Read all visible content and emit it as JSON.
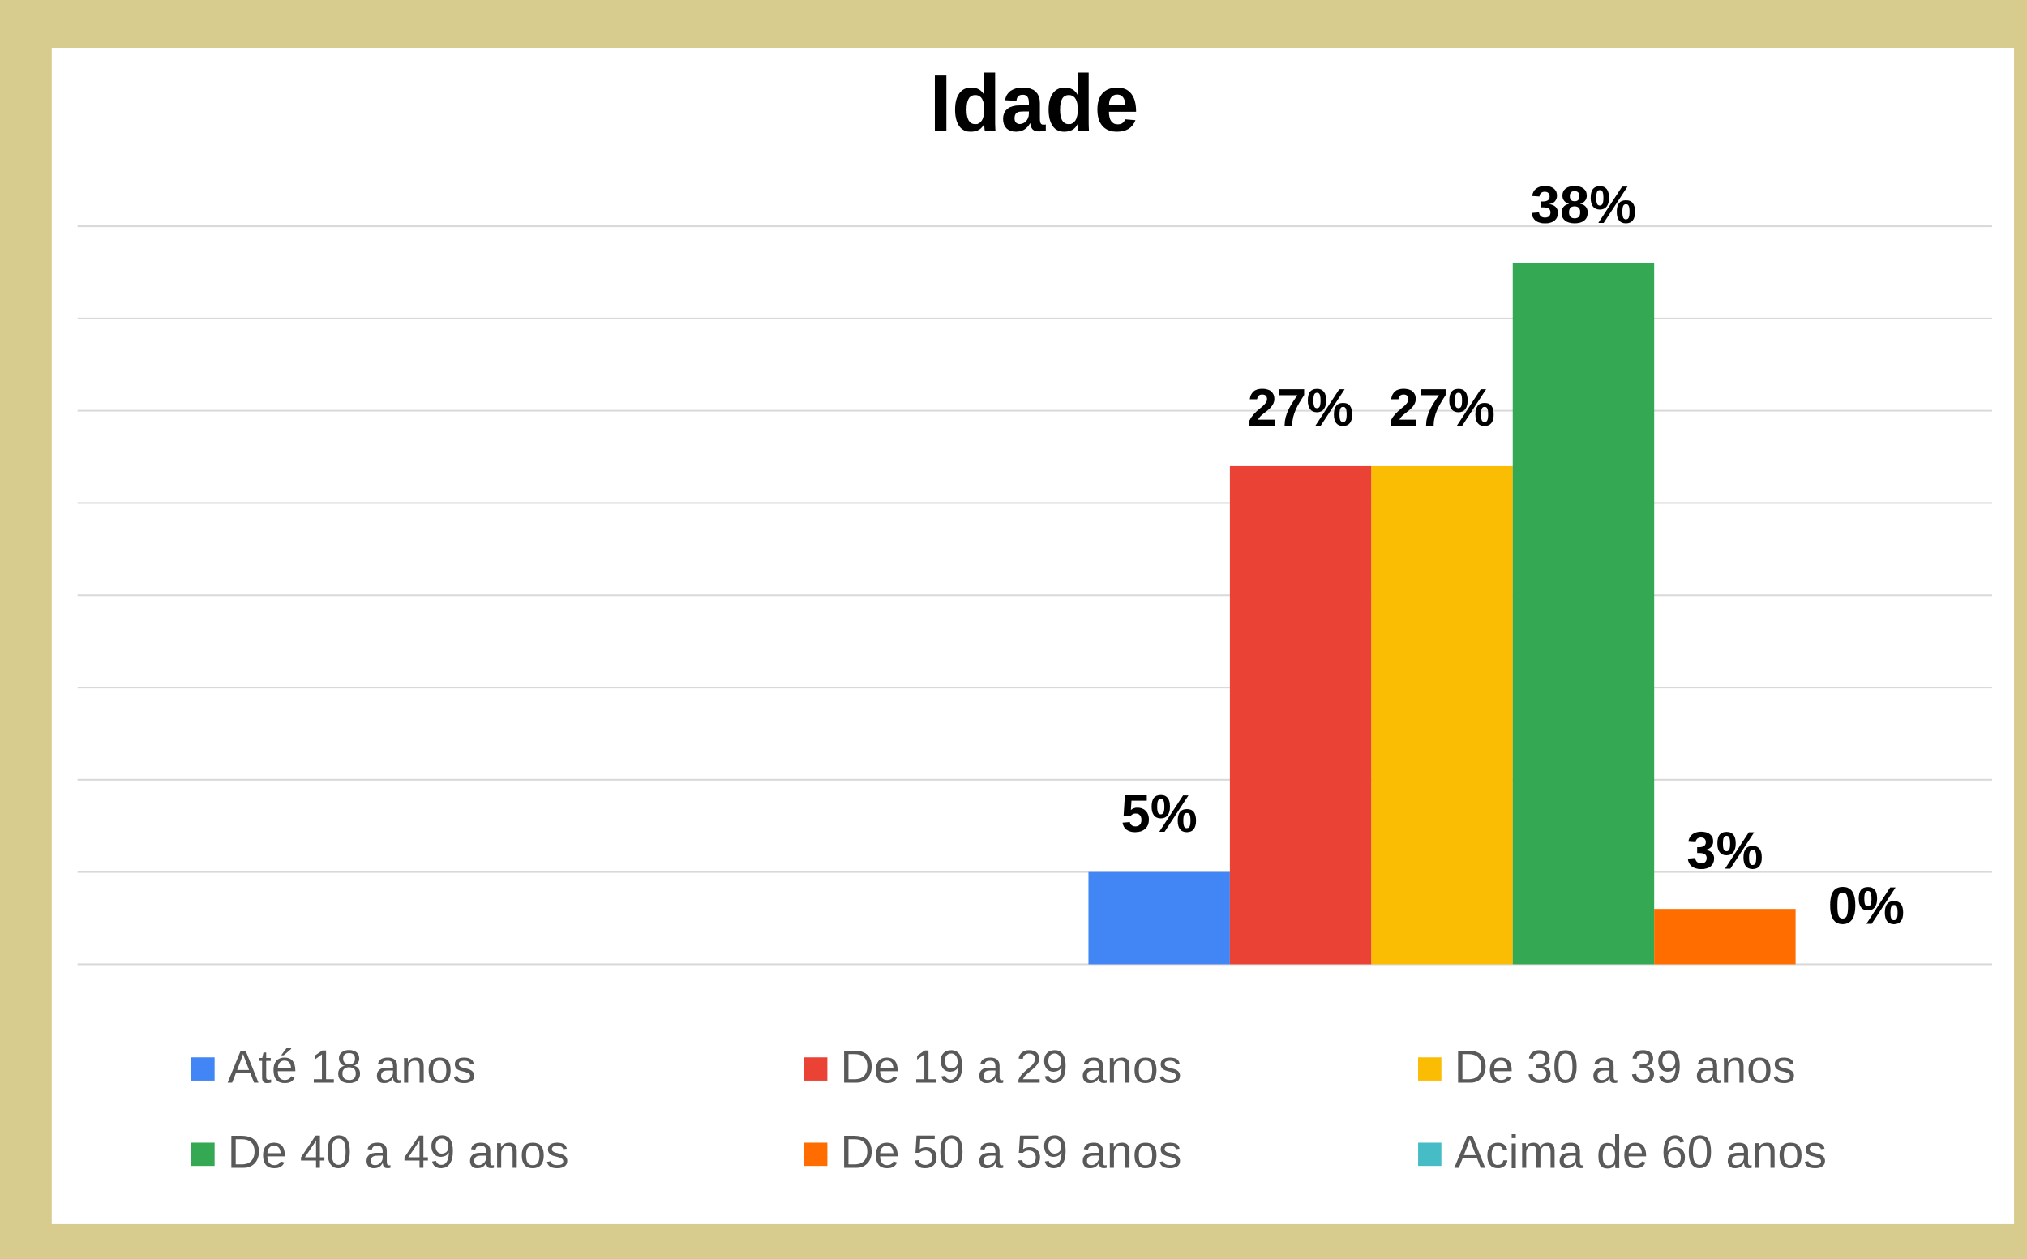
{
  "chart_data": {
    "type": "bar",
    "title": "Idade",
    "series": [
      {
        "name": "Até 18 anos",
        "color": "#4285f4",
        "values": [
          5
        ],
        "value_labels": [
          "5%"
        ]
      },
      {
        "name": "De 19 a 29 anos",
        "color": "#ea4335",
        "values": [
          27
        ],
        "value_labels": [
          "27%"
        ]
      },
      {
        "name": "De 30 a 39 anos",
        "color": "#fbbc04",
        "values": [
          27
        ],
        "value_labels": [
          "27%"
        ]
      },
      {
        "name": "De 40 a 49 anos",
        "color": "#34a853",
        "values": [
          38
        ],
        "value_labels": [
          "38%"
        ]
      },
      {
        "name": "De 50 a 59 anos",
        "color": "#ff6d01",
        "values": [
          3
        ],
        "value_labels": [
          "3%"
        ]
      },
      {
        "name": "Acima de 60 anos",
        "color": "#46bdc6",
        "values": [
          0
        ],
        "value_labels": [
          "0%"
        ]
      }
    ],
    "ylim": [
      0,
      40
    ],
    "yticks": [
      0,
      5,
      10,
      15,
      20,
      25,
      30,
      35,
      40
    ],
    "grid": true,
    "legend": "bottom"
  }
}
